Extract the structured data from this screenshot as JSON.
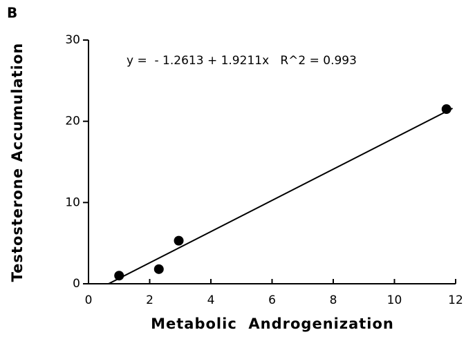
{
  "chart_data": {
    "type": "scatter",
    "panel_label": "B",
    "x_label": "Metabolic  Androgenization",
    "y_label": "Testosterone Accumulation",
    "annotation": "y =  - 1.2613 + 1.9211x   R^2 = 0.993",
    "x": [
      1.0,
      2.3,
      2.95,
      11.7
    ],
    "values": [
      1.0,
      1.8,
      5.3,
      21.5
    ],
    "color": "#000000",
    "trendline": {
      "intercept": -1.2613,
      "slope": 1.9211,
      "x_range": [
        0.66,
        11.9
      ]
    },
    "xlim": [
      0,
      12
    ],
    "ylim": [
      0,
      30
    ],
    "xticks": [
      0,
      2,
      4,
      6,
      8,
      10,
      12
    ],
    "yticks": [
      0,
      10,
      20,
      30
    ]
  }
}
